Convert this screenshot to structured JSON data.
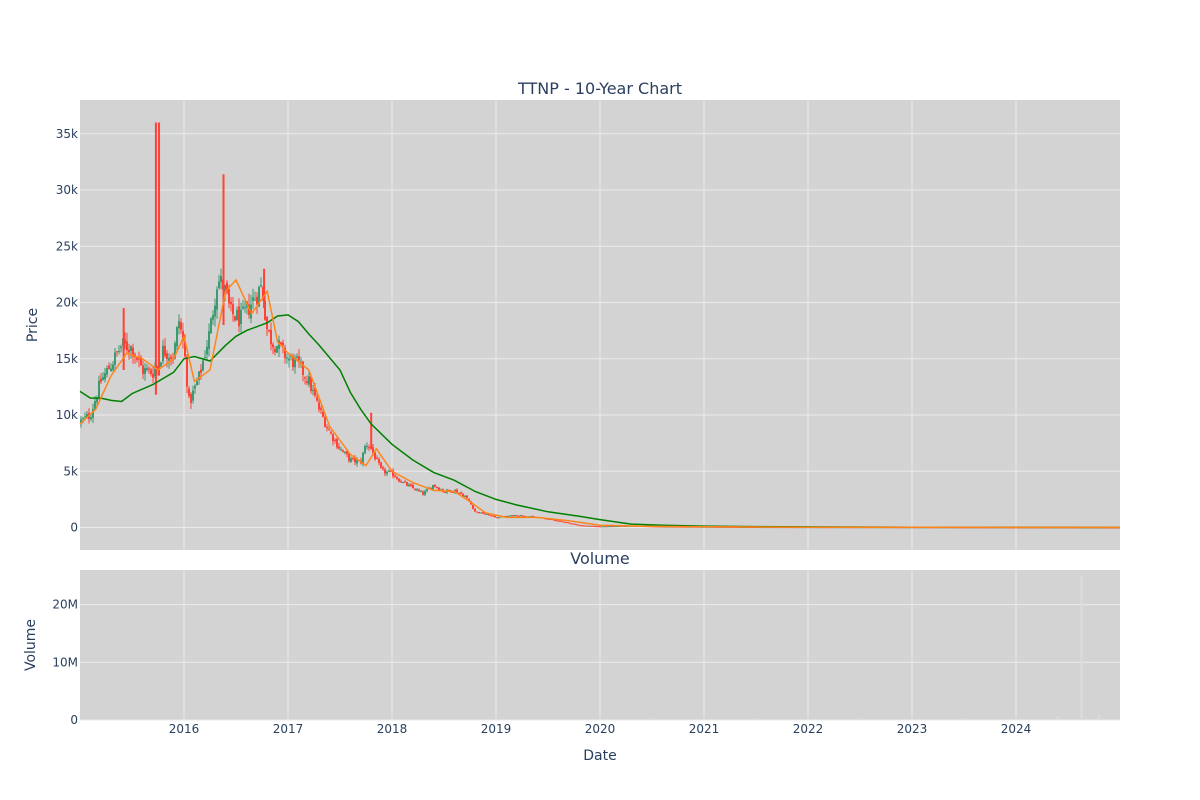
{
  "chart_data": {
    "type": "candlestick",
    "title": "TTNP - 10-Year Chart",
    "colors": {
      "plot_bg": "#d3d3d3",
      "increasing": "#3d9970",
      "decreasing": "#ff4136",
      "ma_short": "#ff851b",
      "ma_long": "#008000",
      "volume_bar": "#dcdcdc"
    },
    "price_panel": {
      "ylabel": "Price",
      "ylim": [
        -2000,
        38000
      ],
      "yticks": [
        {
          "value": 0,
          "label": "0"
        },
        {
          "value": 5000,
          "label": "5k"
        },
        {
          "value": 10000,
          "label": "10k"
        },
        {
          "value": 15000,
          "label": "15k"
        },
        {
          "value": 20000,
          "label": "20k"
        },
        {
          "value": 25000,
          "label": "25k"
        },
        {
          "value": 30000,
          "label": "30k"
        },
        {
          "value": 35000,
          "label": "35k"
        }
      ]
    },
    "volume_panel": {
      "title": "Volume",
      "ylabel": "Volume",
      "ylim": [
        0,
        26000000
      ],
      "yticks": [
        {
          "value": 0,
          "label": "0"
        },
        {
          "value": 10000000,
          "label": "10M"
        },
        {
          "value": 20000000,
          "label": "20M"
        }
      ]
    },
    "x_axis": {
      "xlabel": "Date",
      "xlim": [
        2015.0,
        2025.0
      ],
      "ticks": [
        {
          "value": 2016,
          "label": "2016"
        },
        {
          "value": 2017,
          "label": "2017"
        },
        {
          "value": 2018,
          "label": "2018"
        },
        {
          "value": 2019,
          "label": "2019"
        },
        {
          "value": 2020,
          "label": "2020"
        },
        {
          "value": 2021,
          "label": "2021"
        },
        {
          "value": 2022,
          "label": "2022"
        },
        {
          "value": 2023,
          "label": "2023"
        },
        {
          "value": 2024,
          "label": "2024"
        }
      ]
    },
    "price_series": {
      "t": [
        2015.0,
        2015.1,
        2015.2,
        2015.3,
        2015.4,
        2015.5,
        2015.6,
        2015.7,
        2015.75,
        2015.8,
        2015.9,
        2015.95,
        2016.0,
        2016.05,
        2016.15,
        2016.25,
        2016.32,
        2016.38,
        2016.45,
        2016.55,
        2016.65,
        2016.75,
        2016.8,
        2016.85,
        2016.9,
        2017.0,
        2017.1,
        2017.2,
        2017.3,
        2017.4,
        2017.5,
        2017.6,
        2017.7,
        2017.75,
        2017.8,
        2017.9,
        2018.0,
        2018.1,
        2018.2,
        2018.3,
        2018.4,
        2018.5,
        2018.6,
        2018.7,
        2018.75,
        2018.8,
        2018.9,
        2019.0,
        2019.2,
        2019.4,
        2019.6,
        2019.8,
        2020.0,
        2020.3,
        2020.6,
        2021.0,
        2021.5,
        2022.0,
        2022.5,
        2023.0,
        2023.5,
        2024.0,
        2024.5,
        2025.0
      ],
      "close": [
        9400,
        10000,
        13000,
        14500,
        16200,
        16000,
        14000,
        13800,
        14500,
        15800,
        15200,
        18500,
        16000,
        11000,
        13500,
        17500,
        22000,
        21500,
        19000,
        18500,
        20000,
        21500,
        17500,
        16500,
        16200,
        15000,
        14500,
        13000,
        10500,
        8500,
        7000,
        6000,
        5800,
        7500,
        7000,
        5000,
        4800,
        4000,
        3500,
        3000,
        3800,
        3200,
        3300,
        2800,
        2200,
        1400,
        1200,
        900,
        1100,
        900,
        600,
        200,
        100,
        150,
        80,
        60,
        40,
        30,
        25,
        20,
        15,
        10,
        8,
        5
      ]
    },
    "ma_short": {
      "t": [
        2015.0,
        2015.15,
        2015.3,
        2015.45,
        2015.6,
        2015.75,
        2015.9,
        2016.0,
        2016.1,
        2016.25,
        2016.4,
        2016.5,
        2016.65,
        2016.8,
        2016.9,
        2017.0,
        2017.2,
        2017.4,
        2017.6,
        2017.75,
        2017.85,
        2018.0,
        2018.2,
        2018.4,
        2018.6,
        2018.75,
        2018.9,
        2019.1,
        2019.4,
        2019.7,
        2020.0,
        2020.5,
        2021.0,
        2022.0,
        2023.0,
        2024.0,
        2025.0
      ],
      "values": [
        9200,
        10500,
        13500,
        15500,
        15000,
        14000,
        15000,
        17000,
        13000,
        14000,
        21000,
        22000,
        19000,
        21000,
        16500,
        15500,
        14000,
        9000,
        6500,
        5500,
        7000,
        5000,
        4000,
        3300,
        3200,
        2300,
        1300,
        900,
        900,
        600,
        200,
        100,
        60,
        30,
        20,
        10,
        5
      ]
    },
    "ma_long": {
      "t": [
        2015.0,
        2015.1,
        2015.2,
        2015.3,
        2015.4,
        2015.5,
        2015.7,
        2015.9,
        2016.0,
        2016.1,
        2016.25,
        2016.4,
        2016.5,
        2016.6,
        2016.8,
        2016.9,
        2017.0,
        2017.1,
        2017.2,
        2017.3,
        2017.5,
        2017.6,
        2017.7,
        2017.8,
        2018.0,
        2018.2,
        2018.4,
        2018.6,
        2018.8,
        2019.0,
        2019.2,
        2019.5,
        2019.8,
        2020.0,
        2020.3,
        2020.6,
        2021.0,
        2021.5,
        2022.0,
        2023.0,
        2024.0,
        2025.0
      ],
      "values": [
        12100,
        11500,
        11500,
        11300,
        11200,
        11900,
        12700,
        13800,
        15000,
        15200,
        14800,
        16200,
        17000,
        17500,
        18200,
        18800,
        18900,
        18300,
        17200,
        16200,
        14000,
        12000,
        10500,
        9200,
        7400,
        6000,
        4900,
        4200,
        3200,
        2500,
        2000,
        1400,
        1000,
        700,
        300,
        200,
        120,
        80,
        50,
        30,
        15,
        5
      ]
    },
    "spikes": [
      {
        "t": 2015.73,
        "low": 11800,
        "high": 36000
      },
      {
        "t": 2015.76,
        "low": 13500,
        "high": 36000
      },
      {
        "t": 2016.38,
        "low": 18000,
        "high": 31400
      },
      {
        "t": 2015.42,
        "low": 14000,
        "high": 19500
      },
      {
        "t": 2016.77,
        "low": 19500,
        "high": 23000
      },
      {
        "t": 2017.8,
        "low": 7000,
        "high": 10200
      }
    ],
    "volume_series": {
      "t": [
        2016.1,
        2016.5,
        2017.0,
        2017.5,
        2018.0,
        2018.5,
        2019.0,
        2019.5,
        2020.0,
        2020.5,
        2021.0,
        2021.5,
        2022.0,
        2022.5,
        2023.0,
        2023.5,
        2024.0,
        2024.4,
        2024.63,
        2024.8
      ],
      "values": [
        60000,
        80000,
        90000,
        100000,
        120000,
        100000,
        150000,
        200000,
        300000,
        400000,
        300000,
        350000,
        250000,
        400000,
        300000,
        350000,
        400000,
        600000,
        25000000,
        900000
      ]
    }
  }
}
